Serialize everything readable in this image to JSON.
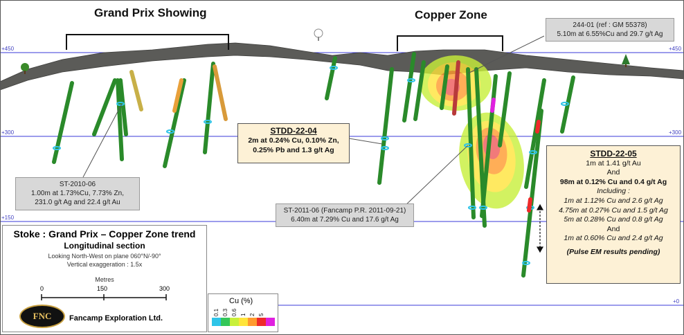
{
  "zones": {
    "grand_prix": "Grand Prix Showing",
    "copper_zone": "Copper Zone"
  },
  "elevations": {
    "e450": "+450",
    "e300": "+300",
    "e150": "+150",
    "e0": "+0"
  },
  "callouts": {
    "hole_244": {
      "line1": "244-01 (ref : GM 55378)",
      "line2": "5.10m at 6.55%Cu and 29.7 g/t Ag"
    },
    "st2010": {
      "line1": "ST-2010-06",
      "line2": "1.00m at 1.73%Cu, 7.73% Zn,",
      "line3": "231.0 g/t Ag and 22.4 g/t Au"
    },
    "st2011": {
      "line1": "ST-2011-06 (Fancamp P.R. 2011-09-21)",
      "line2": "6.40m at 7.29% Cu and 17.6 g/t Ag"
    },
    "stdd04": {
      "header": "STDD-22-04",
      "line1": "2m at 0.24% Cu, 0.10% Zn,",
      "line2": "0.25% Pb and 1.3 g/t Ag"
    },
    "stdd05": {
      "header": "STDD-22-05",
      "line1": "1m at 1.41 g/t Au",
      "line2": "And",
      "line3": "98m at 0.12% Cu and 0.4 g/t Ag",
      "line4": "Including :",
      "line5": "1m at 1.12% Cu and 2.6 g/t Ag",
      "line6": "4.75m at 0.27% Cu and 1.5 g/t Ag",
      "line7": "5m at 0.28% Cu and 0.8 g/t Ag",
      "line8": "And",
      "line9": "1m at 0.60% Cu and 2.4 g/t Ag",
      "line10": "(Pulse EM results pending)"
    }
  },
  "title_block": {
    "title": "Stoke : Grand Prix – Copper Zone trend",
    "subtitle": "Longitudinal section",
    "looking": "Looking North-West on plane 060°N/-90°",
    "vertical_exaggeration": "Vertical exaggeration : 1.5x",
    "scale_label": "Metres",
    "scale_ticks": [
      "0",
      "150",
      "300"
    ],
    "logo_text": "FNC",
    "company": "Fancamp Exploration Ltd."
  },
  "legend": {
    "title": "Cu (%)",
    "items": [
      {
        "value": "0.1",
        "color": "#2ec4e8"
      },
      {
        "value": "0.3",
        "color": "#34c759"
      },
      {
        "value": "0.6",
        "color": "#c8f03a"
      },
      {
        "value": "1",
        "color": "#ffe43a"
      },
      {
        "value": "2",
        "color": "#ff9a2e"
      },
      {
        "value": "5",
        "color": "#ee2a2a"
      },
      {
        "value": "",
        "color": "#e020e0"
      }
    ]
  },
  "colors": {
    "topography": "#5b5b58",
    "elevation_line": "#3a3ad8",
    "drillhole": "#2a8a2a",
    "callout_grey": "#d8d8d8",
    "callout_tan": "#fdf1d6"
  }
}
